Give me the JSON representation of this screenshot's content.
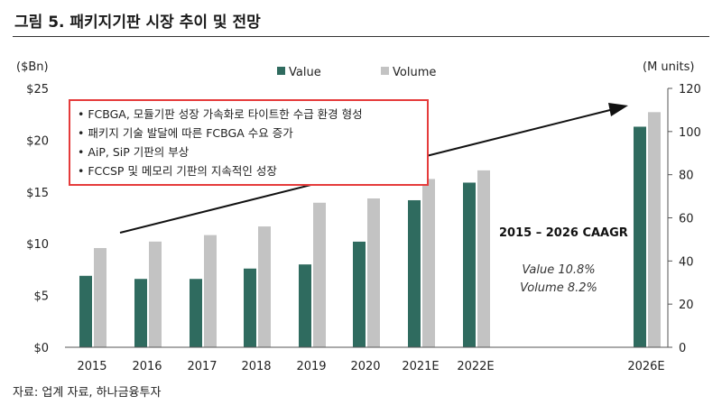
{
  "figure_title": "그림 5. 패키지기판 시장 추이 및 전망",
  "source_note": "자료: 업계 자료, 하나금융투자",
  "colors": {
    "value": "#2f6b5f",
    "volume": "#c3c3c3",
    "callout_border": "#e53b3b",
    "axis": "#555555",
    "arrow": "#111111"
  },
  "chart_data": {
    "type": "bar",
    "categories": [
      "2015",
      "2016",
      "2017",
      "2018",
      "2019",
      "2020",
      "2021E",
      "2022E",
      "2026E"
    ],
    "series": [
      {
        "name": "Value",
        "axis": "left",
        "values": [
          6.9,
          6.6,
          6.6,
          7.6,
          8.0,
          10.2,
          14.2,
          15.9,
          21.3
        ]
      },
      {
        "name": "Volume",
        "axis": "right",
        "values": [
          46,
          49,
          52,
          56,
          67,
          69,
          78,
          82,
          109
        ]
      }
    ],
    "left_axis": {
      "unit": "($Bn)",
      "range": [
        0,
        25
      ],
      "ticks": [
        "$0",
        "$5",
        "$10",
        "$15",
        "$20",
        "$25"
      ]
    },
    "right_axis": {
      "unit": "(M units)",
      "range": [
        0,
        120
      ],
      "ticks": [
        "0",
        "20",
        "40",
        "60",
        "80",
        "100",
        "120"
      ]
    },
    "legend": {
      "position": "top-center"
    },
    "callout": [
      "• FCBGA, 모듈기판 성장 가속화로 타이트한 수급 환경 형성",
      "• 패키지 기술 발달에 따른 FCBGA 수요 증가",
      "• AiP, SiP 기판의 부상",
      "• FCCSP 및 메모리 기판의 지속적인 성장"
    ],
    "cagr": {
      "title": "2015 – 2026 CAAGR",
      "value": "Value 10.8%",
      "volume": "Volume 8.2%"
    }
  }
}
